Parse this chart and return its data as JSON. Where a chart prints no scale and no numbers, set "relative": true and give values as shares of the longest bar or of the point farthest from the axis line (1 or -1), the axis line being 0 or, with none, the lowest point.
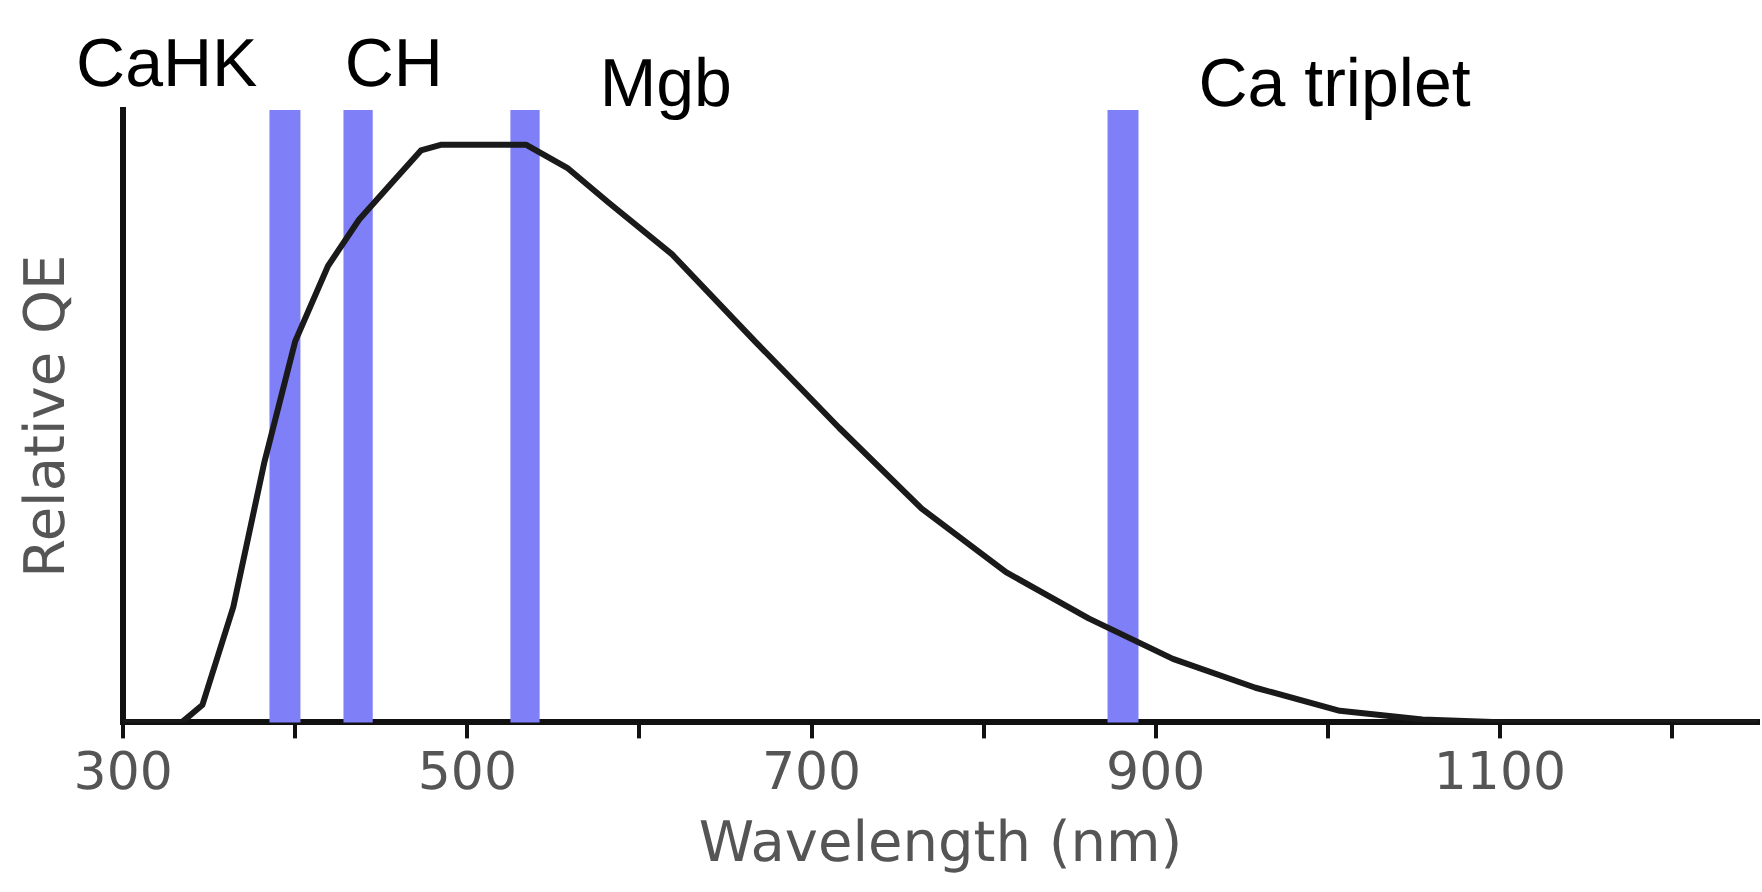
{
  "chart_data": {
    "type": "line",
    "xlabel": "Wavelength (nm)",
    "ylabel": "Relative QE",
    "relative": true,
    "tick_labels": "x",
    "xlim": [
      300,
      1250
    ],
    "xticks": [
      300,
      {
        "value": 400,
        "label": null
      },
      500,
      {
        "value": 600,
        "label": null
      },
      700,
      {
        "value": 800,
        "label": null
      },
      900,
      {
        "value": 1000,
        "label": null
      },
      1100,
      {
        "value": 1200,
        "label": null
      }
    ],
    "series": [
      {
        "color": "#1a1a1a",
        "x": [
          300,
          334,
          346,
          364,
          382,
          400,
          419,
          437,
          455,
          473,
          485,
          534,
          558,
          582,
          619,
          667,
          716,
          764,
          813,
          861,
          910,
          958,
          1007,
          1055,
          1104,
          1250
        ],
        "values": [
          0,
          0,
          0.03,
          0.2,
          0.45,
          0.66,
          0.79,
          0.87,
          0.93,
          0.99,
          1,
          1,
          0.96,
          0.9,
          0.81,
          0.66,
          0.51,
          0.37,
          0.26,
          0.18,
          0.11,
          0.06,
          0.02,
          0.005,
          0,
          0
        ]
      }
    ],
    "bands": [
      {
        "axis": "x",
        "from": 385,
        "to": 403,
        "label": "CaHK",
        "color": "#7f7ff7"
      },
      {
        "axis": "x",
        "from": 428,
        "to": 445,
        "label": "CH",
        "color": "#7f7ff7"
      },
      {
        "axis": "x",
        "from": 525,
        "to": 542,
        "label": "Mgb",
        "color": "#7f7ff7"
      },
      {
        "axis": "x",
        "from": 872,
        "to": 890,
        "label": "Ca triplet",
        "color": "#7f7ff7"
      }
    ]
  }
}
